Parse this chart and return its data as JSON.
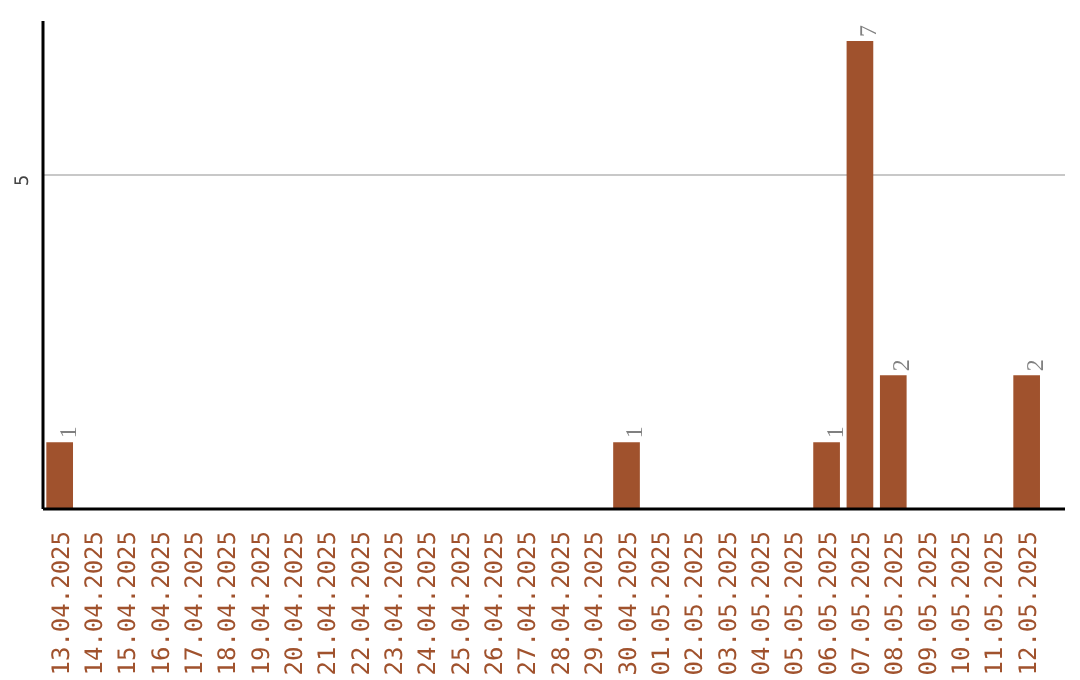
{
  "chart_data": {
    "type": "bar",
    "categories": [
      "13.04.2025",
      "14.04.2025",
      "15.04.2025",
      "16.04.2025",
      "17.04.2025",
      "18.04.2025",
      "19.04.2025",
      "20.04.2025",
      "21.04.2025",
      "22.04.2025",
      "23.04.2025",
      "24.04.2025",
      "25.04.2025",
      "26.04.2025",
      "27.04.2025",
      "28.04.2025",
      "29.04.2025",
      "30.04.2025",
      "01.05.2025",
      "02.05.2025",
      "03.05.2025",
      "04.05.2025",
      "05.05.2025",
      "06.05.2025",
      "07.05.2025",
      "08.05.2025",
      "09.05.2025",
      "10.05.2025",
      "11.05.2025",
      "12.05.2025"
    ],
    "values": [
      1,
      0,
      0,
      0,
      0,
      0,
      0,
      0,
      0,
      0,
      0,
      0,
      0,
      0,
      0,
      0,
      0,
      1,
      0,
      0,
      0,
      0,
      0,
      1,
      7,
      2,
      0,
      0,
      0,
      2
    ],
    "value_labels": [
      "1",
      null,
      null,
      null,
      null,
      null,
      null,
      null,
      null,
      null,
      null,
      null,
      null,
      null,
      null,
      null,
      null,
      "1",
      null,
      null,
      null,
      null,
      null,
      "1",
      "7",
      "2",
      null,
      null,
      null,
      "2"
    ],
    "color": "#a0522d",
    "ylim": [
      0,
      7.3
    ],
    "yticks": [
      5
    ],
    "grid": "y"
  }
}
